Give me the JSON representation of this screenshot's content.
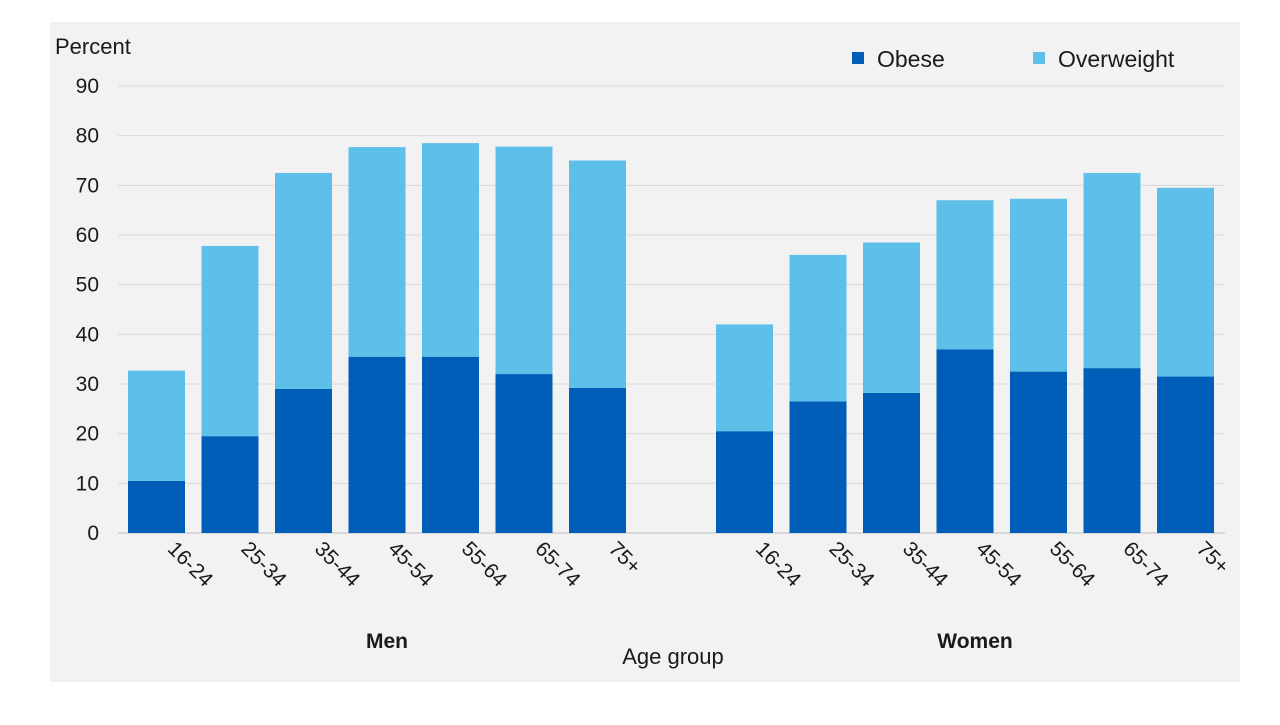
{
  "chart_data": {
    "type": "bar",
    "stacked": true,
    "ylabel": "Percent",
    "xlabel": "Age group",
    "ylim": [
      0,
      90
    ],
    "yticks": [
      0,
      10,
      20,
      30,
      40,
      50,
      60,
      70,
      80,
      90
    ],
    "grid": true,
    "legend_position": "top-right",
    "groups": [
      {
        "name": "Men",
        "categories": [
          "16-24",
          "25-34",
          "35-44",
          "45-54",
          "55-64",
          "65-74",
          "75+"
        ],
        "series": [
          {
            "name": "Obese",
            "values": [
              10.5,
              19.5,
              29,
              35.5,
              35.5,
              32,
              29.2
            ]
          },
          {
            "name": "Overweight",
            "values": [
              22.2,
              38.3,
              43.5,
              42.2,
              43,
              45.8,
              45.8
            ]
          }
        ]
      },
      {
        "name": "Women",
        "categories": [
          "16-24",
          "25-34",
          "35-44",
          "45-54",
          "55-64",
          "65-74",
          "75+"
        ],
        "series": [
          {
            "name": "Obese",
            "values": [
              20.5,
              26.5,
              28.2,
              37,
              32.5,
              33.2,
              31.5
            ]
          },
          {
            "name": "Overweight",
            "values": [
              21.5,
              29.5,
              30.3,
              30,
              34.8,
              39.3,
              38
            ]
          }
        ]
      }
    ],
    "colors": {
      "Obese": "#005EB8",
      "Overweight": "#5EC0E8",
      "grid": "#d9d9d9",
      "background": "#f2f2f2"
    }
  }
}
